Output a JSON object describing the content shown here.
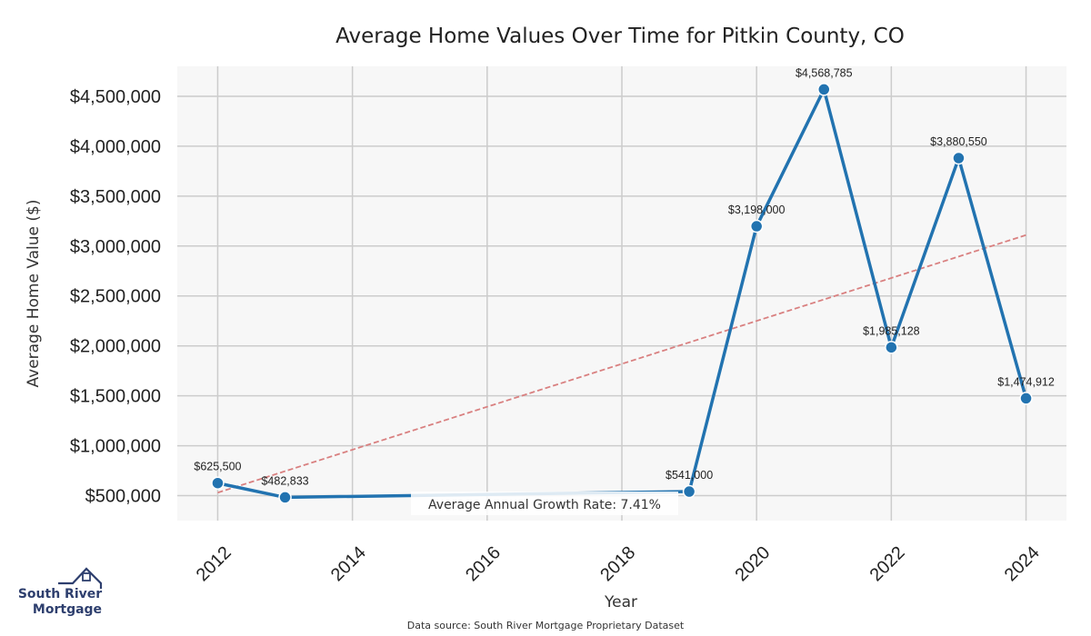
{
  "chart_data": {
    "type": "line",
    "title": "Average Home Values Over Time for Pitkin County, CO",
    "xlabel": "Year",
    "ylabel": "Average Home Value ($)",
    "x": [
      2012,
      2013,
      2019,
      2020,
      2021,
      2022,
      2023,
      2024
    ],
    "series": [
      {
        "name": "Average Home Value",
        "values": [
          625500,
          482833,
          541000,
          3198000,
          4568785,
          1985128,
          3880550,
          1474912
        ],
        "labels": [
          "$625,500",
          "$482,833",
          "$541,000",
          "$3,198,000",
          "$4,568,785",
          "$1,985,128",
          "$3,880,550",
          "$1,474,912"
        ],
        "color": "#2273b0"
      }
    ],
    "trend_line": {
      "start": [
        2012,
        530000
      ],
      "end": [
        2024,
        3110000
      ],
      "color": "#d98080"
    },
    "x_ticks": [
      2012,
      2014,
      2016,
      2018,
      2020,
      2022,
      2024
    ],
    "x_tick_labels": [
      "2012",
      "2014",
      "2016",
      "2018",
      "2020",
      "2022",
      "2024"
    ],
    "y_ticks": [
      500000,
      1000000,
      1500000,
      2000000,
      2500000,
      3000000,
      3500000,
      4000000,
      4500000
    ],
    "y_tick_labels": [
      "$500,000",
      "$1,000,000",
      "$1,500,000",
      "$2,000,000",
      "$2,500,000",
      "$3,000,000",
      "$3,500,000",
      "$4,000,000",
      "$4,500,000"
    ],
    "xlim": [
      2011.4,
      2024.6
    ],
    "ylim": [
      250000,
      4800000
    ],
    "grid": true,
    "annotation": "Average Annual Growth Rate: 7.41%"
  },
  "footer": {
    "source": "Data source: South River Mortgage Proprietary Dataset"
  },
  "logo": {
    "line1": "South River",
    "line2": "Mortgage"
  },
  "colors": {
    "plot_bg": "#f7f7f7",
    "grid": "#cccccc",
    "line": "#2273b0",
    "trend": "#d98080",
    "logo": "#2e3f6e"
  }
}
